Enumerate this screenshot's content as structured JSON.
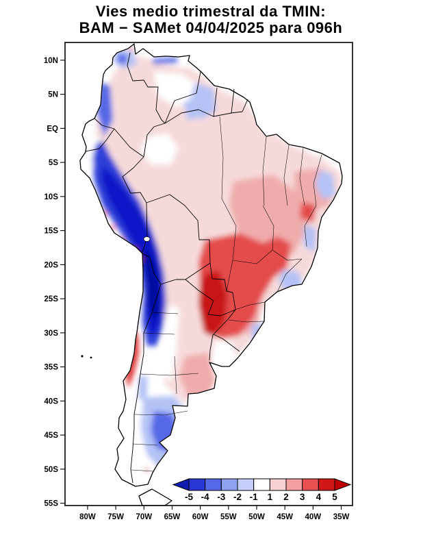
{
  "title": {
    "line1": "Vies medio trimestral da TMIN:",
    "line2": "BAM − SAMet 04/04/2025  para 096h"
  },
  "axes": {
    "lat_ticks": [
      {
        "label": "10N",
        "value": 10
      },
      {
        "label": "5N",
        "value": 5
      },
      {
        "label": "EQ",
        "value": 0
      },
      {
        "label": "5S",
        "value": -5
      },
      {
        "label": "10S",
        "value": -10
      },
      {
        "label": "15S",
        "value": -15
      },
      {
        "label": "20S",
        "value": -20
      },
      {
        "label": "25S",
        "value": -25
      },
      {
        "label": "30S",
        "value": -30
      },
      {
        "label": "35S",
        "value": -35
      },
      {
        "label": "40S",
        "value": -40
      },
      {
        "label": "45S",
        "value": -45
      },
      {
        "label": "50S",
        "value": -50
      },
      {
        "label": "55S",
        "value": -55
      }
    ],
    "lon_ticks": [
      {
        "label": "80W",
        "value": -80
      },
      {
        "label": "75W",
        "value": -75
      },
      {
        "label": "70W",
        "value": -70
      },
      {
        "label": "65W",
        "value": -65
      },
      {
        "label": "60W",
        "value": -60
      },
      {
        "label": "55W",
        "value": -55
      },
      {
        "label": "50W",
        "value": -50
      },
      {
        "label": "45W",
        "value": -45
      },
      {
        "label": "40W",
        "value": -40
      },
      {
        "label": "35W",
        "value": -35
      }
    ]
  },
  "colorbar": {
    "tick_labels": [
      "-5",
      "-4",
      "-3",
      "-2",
      "-1",
      "1",
      "2",
      "3",
      "4",
      "5"
    ],
    "cell_colors": [
      "#2936d6",
      "#5468e8",
      "#8fa2f0",
      "#c6cffa",
      "#ffffff",
      "#f8d2d2",
      "#f2a0a0",
      "#e65050",
      "#d01818"
    ],
    "left_arrow_color": "#101cb0",
    "right_arrow_color": "#c00000"
  },
  "chart_data": {
    "type": "heatmap",
    "title": "Vies medio trimestral da TMIN: BAM − SAMet 04/04/2025 para 096h",
    "x_tick_labels": [
      "80W",
      "75W",
      "70W",
      "65W",
      "60W",
      "55W",
      "50W",
      "45W",
      "40W",
      "35W"
    ],
    "y_tick_labels": [
      "10N",
      "5N",
      "EQ",
      "5S",
      "10S",
      "15S",
      "20S",
      "25S",
      "30S",
      "35S",
      "40S",
      "45S",
      "50S",
      "55S"
    ],
    "colorbar_ticks": [
      -5,
      -4,
      -3,
      -2,
      -1,
      1,
      2,
      3,
      4,
      5
    ],
    "colorbar_note": "values between -1 and 1 rendered white; arrows at both ends",
    "legend_position": "bottom-inside",
    "geographic_extent": {
      "lon": [
        "84W",
        "33W"
      ],
      "lat": [
        "12.6N",
        "55.3S"
      ]
    },
    "regions": [
      {
        "area": "Andes / Altiplano (Peru, Bolivia, northern Chile)",
        "bias_range": "-3 to -5"
      },
      {
        "area": "Colombian Andes",
        "bias_range": "-2 to -4"
      },
      {
        "area": "Paraguay, northeastern Argentina, far south Brazil (core)",
        "bias_range": "+3 to +5"
      },
      {
        "area": "Central and eastern Brazil",
        "bias_range": "+1 to +3"
      },
      {
        "area": "Amazon basin",
        "bias_range": "0 to +1"
      },
      {
        "area": "Central Chile coast (29S-37S)",
        "bias_range": "+2 to +4"
      },
      {
        "area": "Patagonia (40S-50S)",
        "bias_range": "-1 to -3"
      },
      {
        "area": "Northern Venezuela and Guyanas",
        "bias_range": "-1 to 0"
      },
      {
        "area": "Northeast Brazil coastal patches",
        "bias_range": "-1 to -2"
      },
      {
        "area": "Uruguay",
        "bias_range": "-1 to +1"
      }
    ]
  }
}
